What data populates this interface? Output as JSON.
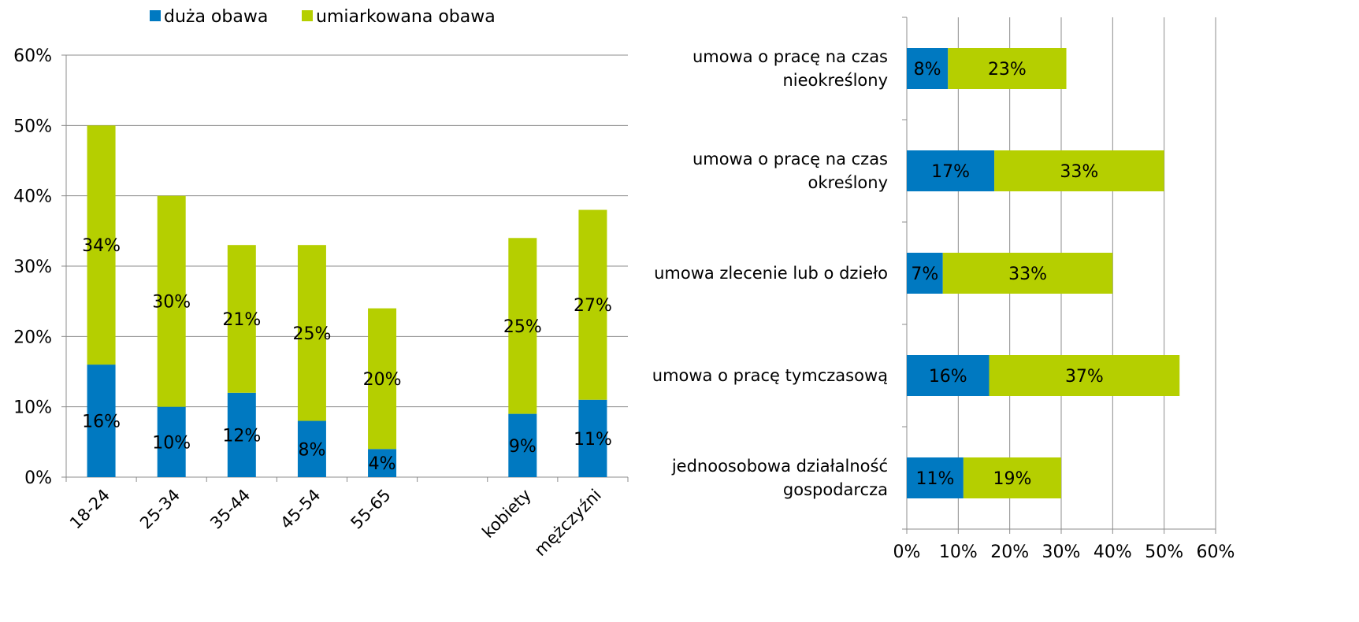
{
  "colors": {
    "duza": "#0079C1",
    "umiarkowana": "#B5CF00",
    "grid": "#8C8C8C",
    "axis": "#8C8C8C"
  },
  "legend": [
    "duża obawa",
    "umiarkowana obawa"
  ],
  "chart_data": [
    {
      "type": "bar",
      "orientation": "vertical",
      "stacked": true,
      "categories": [
        "18-24",
        "25-34",
        "35-44",
        "45-54",
        "55-65",
        "",
        "kobiety",
        "mężczyźni"
      ],
      "series": [
        {
          "name": "duża obawa",
          "values": [
            16,
            10,
            12,
            8,
            4,
            null,
            9,
            11
          ],
          "labels": [
            "16%",
            "10%",
            "12%",
            "8%",
            "4%",
            "",
            "9%",
            "11%"
          ]
        },
        {
          "name": "umiarkowana obawa",
          "values": [
            34,
            30,
            21,
            25,
            20,
            null,
            25,
            27
          ],
          "labels": [
            "34%",
            "30%",
            "21%",
            "25%",
            "20%",
            "",
            "25%",
            "27%"
          ]
        }
      ],
      "ylim": [
        0,
        60
      ],
      "yticks": [
        "0%",
        "10%",
        "20%",
        "30%",
        "40%",
        "50%",
        "60%"
      ],
      "grid": true,
      "legend_position": "top"
    },
    {
      "type": "bar",
      "orientation": "horizontal",
      "stacked": true,
      "categories": [
        [
          "umowa o pracę na czas",
          "nieokreślony"
        ],
        [
          "umowa o pracę na czas",
          "określony"
        ],
        [
          "umowa zlecenie lub o dzieło"
        ],
        [
          "umowa o pracę tymczasową"
        ],
        [
          "jednoosobowa działalność",
          "gospodarcza"
        ]
      ],
      "series": [
        {
          "name": "duża obawa",
          "values": [
            8,
            17,
            7,
            16,
            11
          ],
          "labels": [
            "8%",
            "17%",
            "7%",
            "16%",
            "11%"
          ]
        },
        {
          "name": "umiarkowana obawa",
          "values": [
            23,
            33,
            33,
            37,
            19
          ],
          "labels": [
            "23%",
            "33%",
            "33%",
            "37%",
            "19%"
          ]
        }
      ],
      "xlim": [
        0,
        60
      ],
      "xticks": [
        "0%",
        "10%",
        "20%",
        "30%",
        "40%",
        "50%",
        "60%"
      ],
      "grid": true
    }
  ]
}
